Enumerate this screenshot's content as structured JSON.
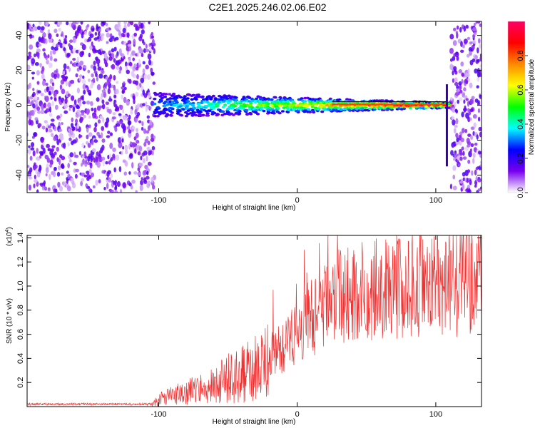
{
  "title": "C2E1.2025.246.02.06.E02",
  "chart_data": [
    {
      "type": "heatmap",
      "xlabel": "Height of straight line (km)",
      "ylabel": "Frequency (Hz)",
      "xlim": [
        -195,
        133
      ],
      "ylim": [
        -50,
        48
      ],
      "x_ticks": [
        -100,
        0,
        100
      ],
      "x_tick_labels": [
        "-100",
        "0",
        "100"
      ],
      "y_ticks": [
        -40,
        -20,
        0,
        20,
        40
      ],
      "y_tick_labels": [
        "-40",
        "-20",
        "0",
        "20",
        "40"
      ],
      "colorbar": {
        "label": "Normalized spectral amplitude",
        "range": [
          0,
          1
        ],
        "ticks": [
          0.0,
          0.2,
          0.4,
          0.6,
          0.8
        ],
        "tick_labels": [
          "0.0",
          "0.2",
          "0.4",
          "0.6",
          "0.8"
        ],
        "colormap": [
          "#ffffff",
          "#7700ee",
          "#0000ff",
          "#00ffff",
          "#00ff00",
          "#ffff00",
          "#ff8800",
          "#ff0000",
          "#ff0066"
        ]
      },
      "features": {
        "noise_regions_km": [
          [
            -195,
            -104
          ],
          [
            111,
            133
          ]
        ],
        "signal_band_km": [
          -105,
          110
        ],
        "center_frequency_hz": 0,
        "signal_end_spike_km": 108
      }
    },
    {
      "type": "line",
      "xlabel": "Height of straight line (km)",
      "ylabel": "SNR (10 * v/v)",
      "y_scale_note": "(x10",
      "y_scale_exponent": "4",
      "xlim": [
        -195,
        133
      ],
      "ylim": [
        0,
        1.42
      ],
      "x_ticks": [
        -100,
        0,
        100
      ],
      "x_tick_labels": [
        "-100",
        "0",
        "100"
      ],
      "y_ticks": [
        0.2,
        0.4,
        0.6,
        0.8,
        1.0,
        1.2,
        1.4
      ],
      "y_tick_labels": [
        "0.2",
        "0.4",
        "0.6",
        "0.8",
        "1.0",
        "1.2",
        "1.4"
      ],
      "color": "#ee3333",
      "series": [
        {
          "name": "SNR",
          "envelope": {
            "x": [
              -195,
              -105,
              -100,
              -80,
              -60,
              -40,
              -25,
              -17,
              -5,
              10,
              30,
              60,
              90,
              110,
              120,
              133
            ],
            "y": [
              0.02,
              0.02,
              0.06,
              0.12,
              0.18,
              0.28,
              0.36,
              0.45,
              0.55,
              0.75,
              0.92,
              0.97,
              1.02,
              1.03,
              1.04,
              1.08
            ]
          }
        }
      ]
    }
  ]
}
